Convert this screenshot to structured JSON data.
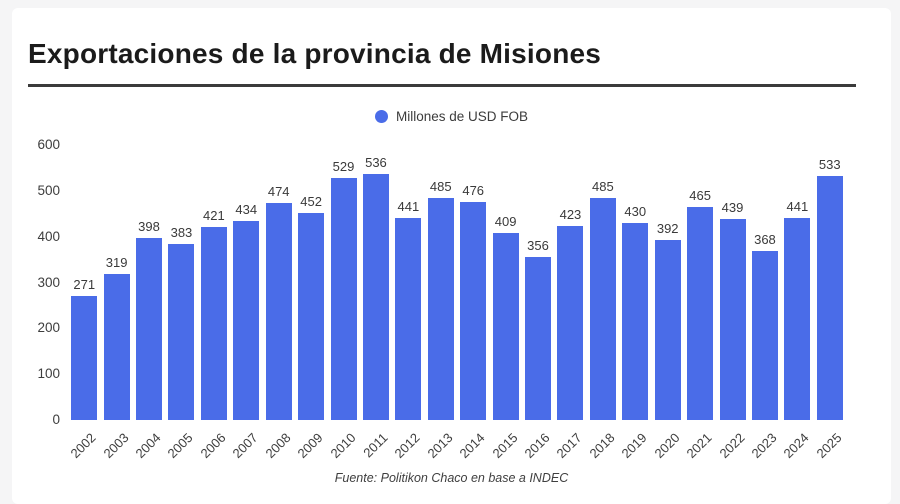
{
  "page": {
    "background_color": "#f5f5f6",
    "card_color": "#ffffff"
  },
  "header": {
    "title": "Exportaciones de la provincia de Misiones"
  },
  "legend": {
    "label": "Millones de USD FOB",
    "marker_color": "#4a6ce8"
  },
  "footer": {
    "source": "Fuente: Politikon Chaco en base a INDEC"
  },
  "chart_data": {
    "type": "bar",
    "title": "Exportaciones de la provincia de Misiones",
    "legend": [
      "Millones de USD FOB"
    ],
    "legend_position": "top-center",
    "categories": [
      "2002",
      "2003",
      "2004",
      "2005",
      "2006",
      "2007",
      "2008",
      "2009",
      "2010",
      "2011",
      "2012",
      "2013",
      "2014",
      "2015",
      "2016",
      "2017",
      "2018",
      "2019",
      "2020",
      "2021",
      "2022",
      "2023",
      "2024",
      "2025"
    ],
    "values": [
      271,
      319,
      398,
      383,
      421,
      434,
      474,
      452,
      529,
      536,
      441,
      485,
      476,
      409,
      356,
      423,
      485,
      430,
      392,
      465,
      439,
      368,
      441,
      533
    ],
    "bar_color": "#4a6ce8",
    "value_labels": true,
    "xlabel": "",
    "ylabel": "",
    "ylim": [
      0,
      600
    ],
    "yticks": [
      0,
      100,
      200,
      300,
      400,
      500,
      600
    ],
    "grid": false,
    "x_tick_rotation": -45,
    "source": "Fuente: Politikon Chaco en base a INDEC"
  }
}
